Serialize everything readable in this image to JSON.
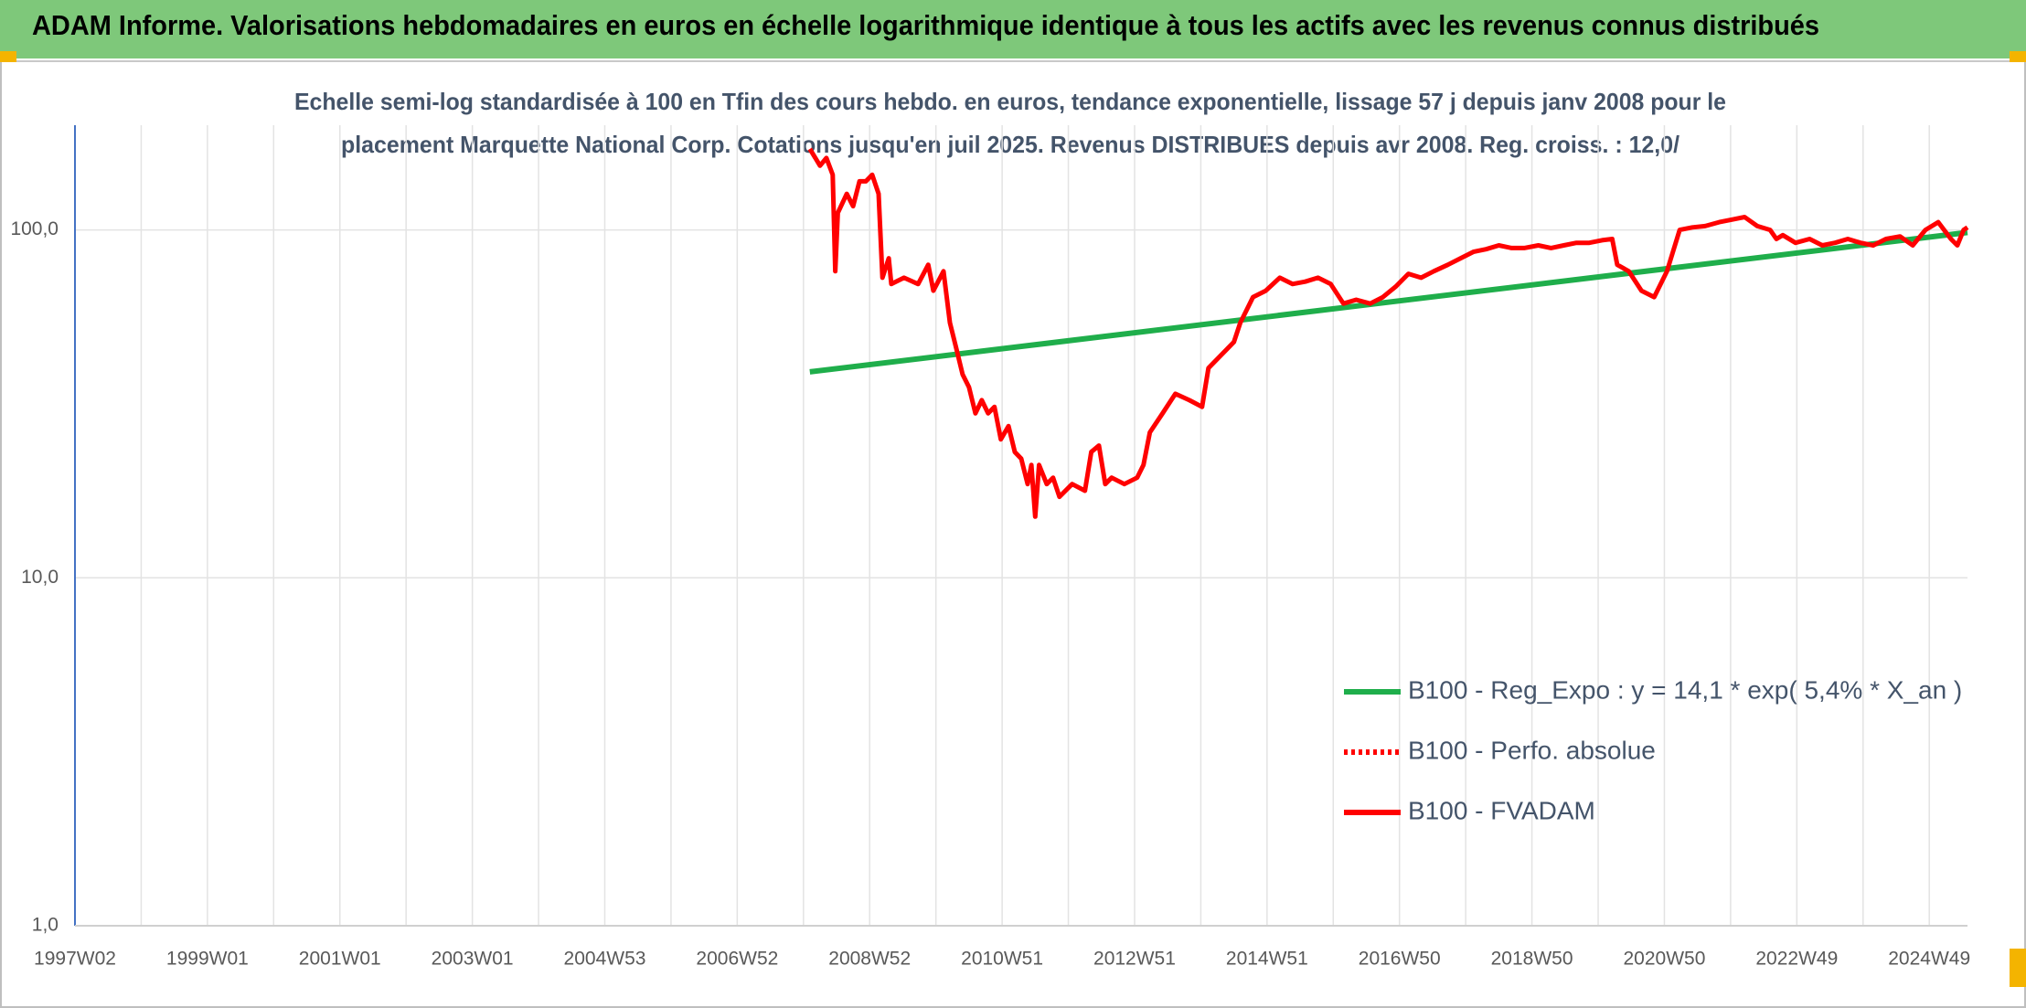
{
  "chart_data": {
    "type": "line",
    "title": "ADAM Informe. Valorisations hebdomadaires en euros en échelle logarithmique identique à tous les actifs avec les revenus connus distribués",
    "subtitle": [
      "Echelle semi-log standardisée à 100 en Tfin des cours hebdo. en euros, tendance exponentielle, lissage 57 j depuis janv 2008 pour le",
      "placement Marquette National Corp. Cotations jusqu'en juil 2025. Revenus DISTRIBUES depuis avr 2008. Reg. croiss. : 12,0/"
    ],
    "xlim": [
      0,
      1486
    ],
    "xticks": [
      {
        "value": 0,
        "label": "1997W02"
      },
      {
        "value": 104,
        "label": "1999W01"
      },
      {
        "value": 208,
        "label": "2001W01"
      },
      {
        "value": 312,
        "label": "2003W01"
      },
      {
        "value": 416,
        "label": "2004W53"
      },
      {
        "value": 520,
        "label": "2006W52"
      },
      {
        "value": 624,
        "label": "2008W52"
      },
      {
        "value": 728,
        "label": "2010W51"
      },
      {
        "value": 832,
        "label": "2012W51"
      },
      {
        "value": 936,
        "label": "2014W51"
      },
      {
        "value": 1040,
        "label": "2016W50"
      },
      {
        "value": 1144,
        "label": "2018W50"
      },
      {
        "value": 1248,
        "label": "2020W50"
      },
      {
        "value": 1352,
        "label": "2022W49"
      },
      {
        "value": 1456,
        "label": "2024W49"
      }
    ],
    "xminor_ticks": [
      52,
      156,
      260,
      364,
      468,
      572,
      676,
      780,
      884,
      988,
      1092,
      1196,
      1300,
      1404
    ],
    "ylim": [
      1,
      200
    ],
    "yscale": "log",
    "yticks": [
      {
        "value": 1,
        "label": "1,0"
      },
      {
        "value": 10,
        "label": "10,0"
      },
      {
        "value": 100,
        "label": "100,0"
      }
    ],
    "grid": true,
    "legend": "lower right",
    "series": [
      {
        "name": "B100 - Reg_Expo : y = 14,1 * exp( 5,4% *  X_an )",
        "color": "#1fae4b",
        "style": "solid",
        "x": [
          577,
          1486
        ],
        "values": [
          39.1,
          98.3
        ]
      },
      {
        "name": "B100 - Perfo. absolue",
        "color": "#ff0000",
        "style": "dotted",
        "x": [],
        "values": []
      },
      {
        "name": "B100 - FVADAM",
        "color": "#ff0000",
        "style": "solid",
        "x": [
          577,
          585,
          590,
          595,
          597,
          599,
          606,
          611,
          616,
          621,
          626,
          631,
          634,
          639,
          641,
          651,
          662,
          670,
          674,
          682,
          687,
          692,
          697,
          702,
          707,
          712,
          717,
          722,
          727,
          733,
          738,
          743,
          748,
          751,
          754,
          757,
          763,
          768,
          773,
          783,
          793,
          798,
          804,
          809,
          814,
          824,
          834,
          839,
          844,
          854,
          864,
          875,
          885,
          890,
          900,
          910,
          915,
          920,
          925,
          935,
          946,
          956,
          966,
          976,
          986,
          996,
          1006,
          1017,
          1027,
          1037,
          1047,
          1057,
          1067,
          1078,
          1088,
          1098,
          1108,
          1118,
          1128,
          1138,
          1149,
          1159,
          1169,
          1179,
          1189,
          1199,
          1207,
          1211,
          1220,
          1230,
          1240,
          1250,
          1260,
          1270,
          1280,
          1291,
          1301,
          1311,
          1321,
          1331,
          1336,
          1341,
          1351,
          1362,
          1372,
          1382,
          1392,
          1402,
          1412,
          1422,
          1433,
          1443,
          1453,
          1463,
          1473,
          1478,
          1483,
          1486
        ],
        "values": [
          171,
          153,
          161,
          144,
          76.1,
          112,
          127,
          117,
          138,
          138,
          144,
          127,
          72.9,
          82.9,
          69.9,
          72.9,
          69.9,
          79.4,
          66.9,
          76.1,
          54.1,
          45.6,
          38.4,
          35.3,
          29.7,
          32.4,
          29.7,
          31.0,
          25.0,
          27.3,
          23.0,
          22.0,
          18.6,
          21.1,
          15.0,
          21.1,
          18.6,
          19.4,
          17.1,
          18.6,
          17.8,
          23.0,
          24.0,
          18.6,
          19.4,
          18.6,
          19.4,
          21.1,
          26.2,
          29.7,
          33.8,
          32.4,
          31.0,
          40.1,
          43.7,
          47.6,
          54.1,
          58.9,
          64.1,
          66.9,
          72.9,
          69.9,
          71.0,
          72.9,
          69.9,
          61.4,
          63.0,
          61.4,
          64.1,
          68.7,
          74.8,
          72.9,
          76.1,
          79.4,
          82.9,
          86.5,
          88.0,
          90.3,
          88.7,
          88.7,
          90.3,
          88.7,
          90.3,
          91.8,
          91.8,
          93.4,
          94.2,
          79.4,
          76.1,
          66.9,
          64.1,
          76.1,
          100,
          101.7,
          102.6,
          105.3,
          107.1,
          108.9,
          102.6,
          100,
          94.2,
          96.6,
          91.8,
          94.2,
          90.3,
          91.8,
          94.2,
          91.8,
          90.3,
          94.2,
          95.8,
          90.3,
          100,
          105.3,
          94.2,
          90.3,
          100,
          101.7
        ]
      }
    ]
  }
}
